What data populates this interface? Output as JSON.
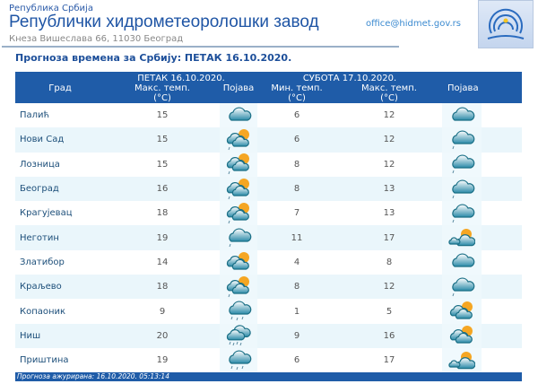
{
  "header": {
    "country": "Република Србија",
    "title": "Републички хидрометеоролошки завод",
    "address": "Кнеза Вишеслава 66, 11030 Београд",
    "email": "office@hidmet.gov.rs",
    "logo_text": "РХМЗ СРБИЈЕ"
  },
  "subtitle": "Прогноза времена за Србију: ПЕТАК  16.10.2020.",
  "table": {
    "headers": {
      "city": "Град",
      "day1": "ПЕТАК  16.10.2020.",
      "day1_max": "Макс. темп.",
      "day1_max_unit": "(°C)",
      "day1_phen": "Појава",
      "day2": "СУБОТА  17.10.2020.",
      "day2_min": "Мин. темп.",
      "day2_min_unit": "(°C)",
      "day2_max": "Макс. темп.",
      "day2_max_unit": "(°C)",
      "day2_phen": "Појава"
    },
    "rows": [
      {
        "city": "Палић",
        "max1": "15",
        "icon1": "cloud",
        "min2": "6",
        "max2": "12",
        "icon2": "cloud"
      },
      {
        "city": "Нови Сад",
        "max1": "15",
        "icon1": "sun-cloud-drizzle",
        "min2": "6",
        "max2": "12",
        "icon2": "cloud-drizzle"
      },
      {
        "city": "Лозница",
        "max1": "15",
        "icon1": "sun-cloud-drizzle",
        "min2": "8",
        "max2": "12",
        "icon2": "cloud-drizzle"
      },
      {
        "city": "Београд",
        "max1": "16",
        "icon1": "sun-cloud-drizzle",
        "min2": "8",
        "max2": "13",
        "icon2": "cloud-drizzle"
      },
      {
        "city": "Крагујевац",
        "max1": "18",
        "icon1": "sun-cloud-drizzle",
        "min2": "7",
        "max2": "13",
        "icon2": "cloud-drizzle"
      },
      {
        "city": "Неготин",
        "max1": "19",
        "icon1": "cloud-drizzle",
        "min2": "11",
        "max2": "17",
        "icon2": "sun-behind-cloud"
      },
      {
        "city": "Златибор",
        "max1": "14",
        "icon1": "sun-cloud",
        "min2": "4",
        "max2": "8",
        "icon2": "cloud"
      },
      {
        "city": "Краљево",
        "max1": "18",
        "icon1": "sun-cloud-drizzle",
        "min2": "8",
        "max2": "12",
        "icon2": "cloud-drizzle"
      },
      {
        "city": "Копаоник",
        "max1": "9",
        "icon1": "cloud-rain",
        "min2": "1",
        "max2": "5",
        "icon2": "sun-cloud"
      },
      {
        "city": "Ниш",
        "max1": "20",
        "icon1": "heavy-cloud-rain",
        "min2": "9",
        "max2": "16",
        "icon2": "sun-cloud"
      },
      {
        "city": "Приштина",
        "max1": "19",
        "icon1": "cloud-rain",
        "min2": "6",
        "max2": "17",
        "icon2": "sun-behind-cloud"
      }
    ]
  },
  "footer": "Прогноза ажурирана:  16.10.2020. 05:13:14",
  "colors": {
    "brand": "#1f5ca8",
    "row_alt": "#eaf6fb",
    "sun": "#f5a623"
  }
}
